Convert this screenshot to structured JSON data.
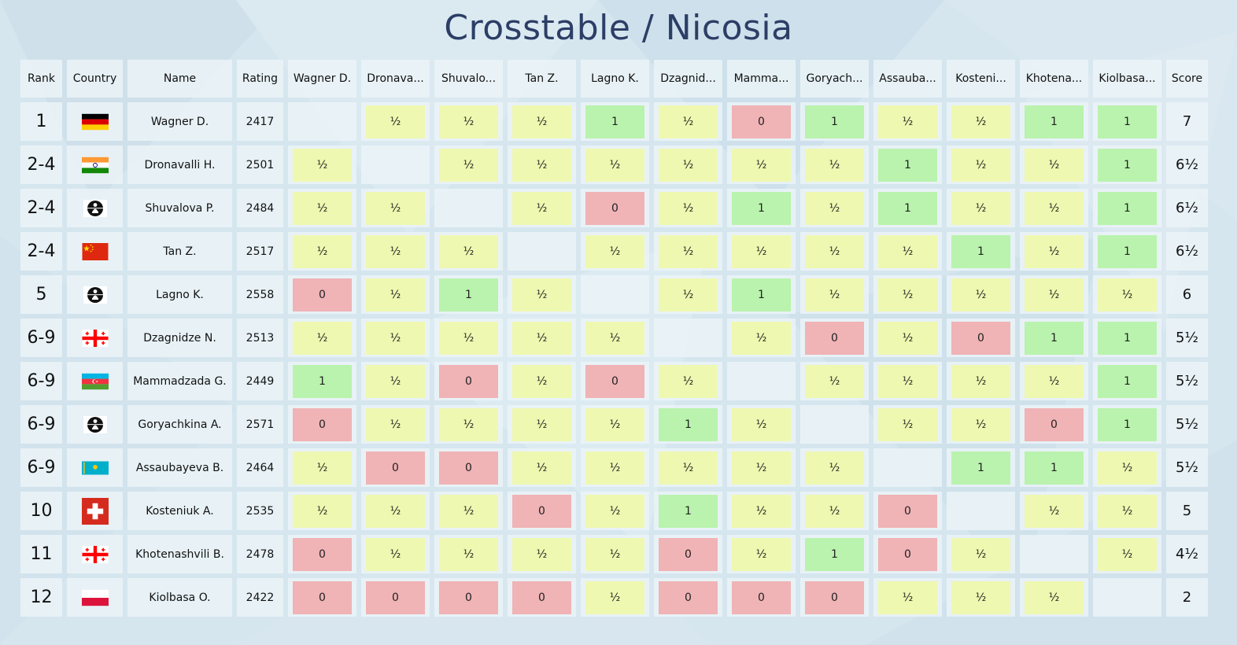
{
  "title": "Crosstable / Nicosia",
  "columns": {
    "rank": "Rank",
    "country": "Country",
    "name": "Name",
    "rating": "Rating",
    "opponents": [
      "Wagner D.",
      "Dronava...",
      "Shuvalo...",
      "Tan Z.",
      "Lagno K.",
      "Dzagnid...",
      "Mamma...",
      "Goryach...",
      "Assauba...",
      "Kosteni...",
      "Khotena...",
      "Kiolbasa..."
    ],
    "score": "Score"
  },
  "players": [
    {
      "rank": "1",
      "country": "germany-flag",
      "name": "Wagner D.",
      "rating": "2417",
      "results": [
        "",
        "½",
        "½",
        "½",
        "1",
        "½",
        "0",
        "1",
        "½",
        "½",
        "1",
        "1"
      ],
      "score": "7"
    },
    {
      "rank": "2-4",
      "country": "india-flag",
      "name": "Dronavalli H.",
      "rating": "2501",
      "results": [
        "½",
        "",
        "½",
        "½",
        "½",
        "½",
        "½",
        "½",
        "1",
        "½",
        "½",
        "1"
      ],
      "score": "6½"
    },
    {
      "rank": "2-4",
      "country": "fide-flag",
      "name": "Shuvalova P.",
      "rating": "2484",
      "results": [
        "½",
        "½",
        "",
        "½",
        "0",
        "½",
        "1",
        "½",
        "1",
        "½",
        "½",
        "1"
      ],
      "score": "6½"
    },
    {
      "rank": "2-4",
      "country": "china-flag",
      "name": "Tan Z.",
      "rating": "2517",
      "results": [
        "½",
        "½",
        "½",
        "",
        "½",
        "½",
        "½",
        "½",
        "½",
        "1",
        "½",
        "1"
      ],
      "score": "6½"
    },
    {
      "rank": "5",
      "country": "fide-flag",
      "name": "Lagno K.",
      "rating": "2558",
      "results": [
        "0",
        "½",
        "1",
        "½",
        "",
        "½",
        "1",
        "½",
        "½",
        "½",
        "½",
        "½"
      ],
      "score": "6"
    },
    {
      "rank": "6-9",
      "country": "georgia-flag",
      "name": "Dzagnidze N.",
      "rating": "2513",
      "results": [
        "½",
        "½",
        "½",
        "½",
        "½",
        "",
        "½",
        "0",
        "½",
        "0",
        "1",
        "1"
      ],
      "score": "5½"
    },
    {
      "rank": "6-9",
      "country": "azerbaijan-flag",
      "name": "Mammadzada G.",
      "rating": "2449",
      "results": [
        "1",
        "½",
        "0",
        "½",
        "0",
        "½",
        "",
        "½",
        "½",
        "½",
        "½",
        "1"
      ],
      "score": "5½"
    },
    {
      "rank": "6-9",
      "country": "fide-flag",
      "name": "Goryachkina A.",
      "rating": "2571",
      "results": [
        "0",
        "½",
        "½",
        "½",
        "½",
        "1",
        "½",
        "",
        "½",
        "½",
        "0",
        "1"
      ],
      "score": "5½"
    },
    {
      "rank": "6-9",
      "country": "kazakhstan-flag",
      "name": "Assaubayeva B.",
      "rating": "2464",
      "results": [
        "½",
        "0",
        "0",
        "½",
        "½",
        "½",
        "½",
        "½",
        "",
        "1",
        "1",
        "½"
      ],
      "score": "5½"
    },
    {
      "rank": "10",
      "country": "switzerland-flag",
      "name": "Kosteniuk A.",
      "rating": "2535",
      "results": [
        "½",
        "½",
        "½",
        "0",
        "½",
        "1",
        "½",
        "½",
        "0",
        "",
        "½",
        "½"
      ],
      "score": "5"
    },
    {
      "rank": "11",
      "country": "georgia-flag",
      "name": "Khotenashvili B.",
      "rating": "2478",
      "results": [
        "0",
        "½",
        "½",
        "½",
        "½",
        "0",
        "½",
        "1",
        "0",
        "½",
        "",
        "½"
      ],
      "score": "4½"
    },
    {
      "rank": "12",
      "country": "poland-flag",
      "name": "Kiolbasa O.",
      "rating": "2422",
      "results": [
        "0",
        "0",
        "0",
        "0",
        "½",
        "0",
        "0",
        "0",
        "½",
        "½",
        "½",
        ""
      ],
      "score": "2"
    }
  ],
  "colors": {
    "win": "#b9f3ad",
    "draw": "#eff8b0",
    "loss": "#f0b3b6",
    "title": "#2c3e66",
    "background": "#d6e6ef"
  }
}
